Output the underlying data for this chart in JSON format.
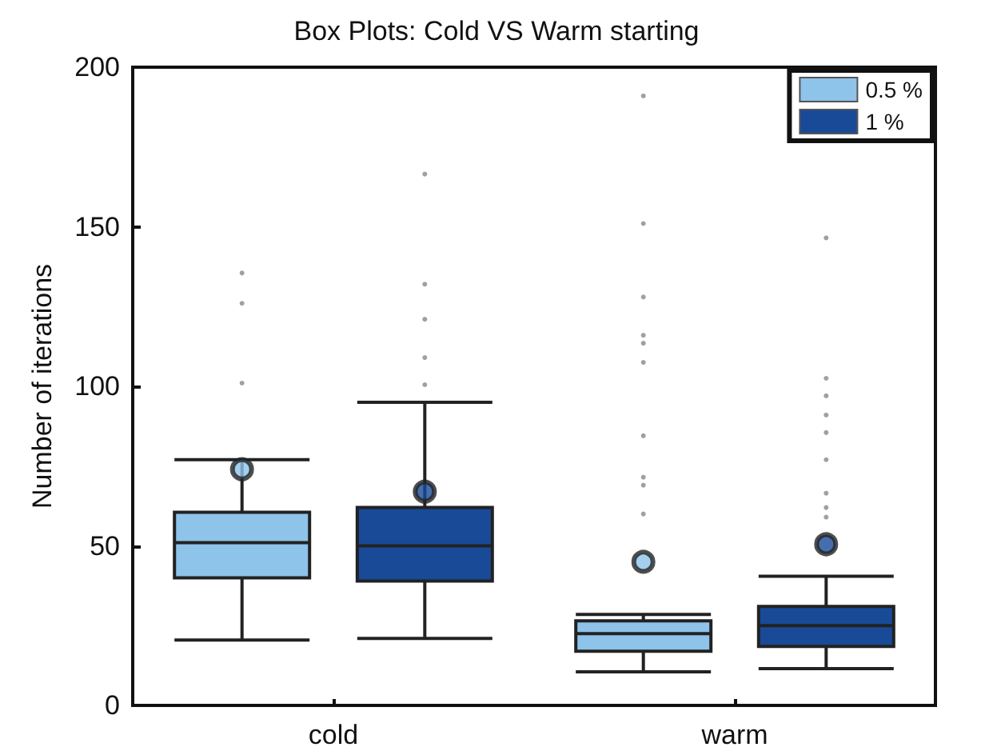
{
  "chart_data": {
    "type": "box",
    "title": "Box Plots: Cold VS Warm starting",
    "ylabel": "Number of iterations",
    "categories": [
      "cold",
      "warm"
    ],
    "series": [
      {
        "name": "0.5 %",
        "color": "#8ec3ea",
        "boxes": [
          {
            "low": 20.5,
            "q1": 40,
            "median": 51,
            "q3": 60.5,
            "high": 77,
            "mean": 74,
            "outliers": [
              101,
              126,
              135.5
            ]
          },
          {
            "low": 10.5,
            "q1": 17,
            "median": 22.5,
            "q3": 26.5,
            "high": 28.5,
            "mean": 45,
            "outliers": [
              60,
              69,
              71.5,
              84.5,
              107.5,
              113.5,
              116,
              128,
              151,
              191
            ]
          }
        ]
      },
      {
        "name": "1 %",
        "color": "#184a98",
        "boxes": [
          {
            "low": 21,
            "q1": 39,
            "median": 50,
            "q3": 62,
            "high": 95,
            "mean": 67,
            "outliers": [
              100.5,
              109,
              121,
              132,
              166.5
            ]
          },
          {
            "low": 11.5,
            "q1": 18.5,
            "median": 25,
            "q3": 31,
            "high": 40.5,
            "mean": 50.5,
            "outliers": [
              59,
              62,
              66.5,
              77,
              85.5,
              91,
              97,
              102.5,
              146.5
            ]
          }
        ]
      }
    ],
    "ylim": [
      0,
      200
    ],
    "yticks": [
      0,
      50,
      100,
      150,
      200
    ],
    "grid": false,
    "legend": "top right"
  }
}
